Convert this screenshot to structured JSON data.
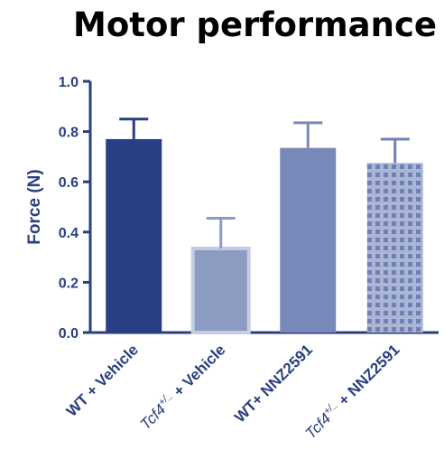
{
  "chart_data": {
    "type": "bar",
    "title": "Motor performance",
    "ylabel": "Force (N)",
    "xlabel": "",
    "ylim": [
      0,
      1.0
    ],
    "yticks": [
      "0.0",
      "0.2",
      "0.4",
      "0.6",
      "0.8",
      "1.0"
    ],
    "categories": [
      {
        "label": "WT + Vehicle"
      },
      {
        "label_italic": "Tcf4",
        "label_sup": "+/_",
        "label_rest": " + Vehicle"
      },
      {
        "label": "WT+ NNZ2591"
      },
      {
        "label_italic": "Tcf4",
        "label_sup": "+/_",
        "label_rest": " + NNZ2591"
      }
    ],
    "values": [
      0.77,
      0.335,
      0.735,
      0.675
    ],
    "errors": [
      0.08,
      0.12,
      0.1,
      0.095
    ],
    "colors": [
      "#263f85",
      "#8b9bc2",
      "#7888b8",
      "#aab5d5"
    ],
    "patterns": [
      "solid",
      "solid",
      "solid",
      "grid"
    ],
    "grid": false,
    "legend": "none"
  }
}
